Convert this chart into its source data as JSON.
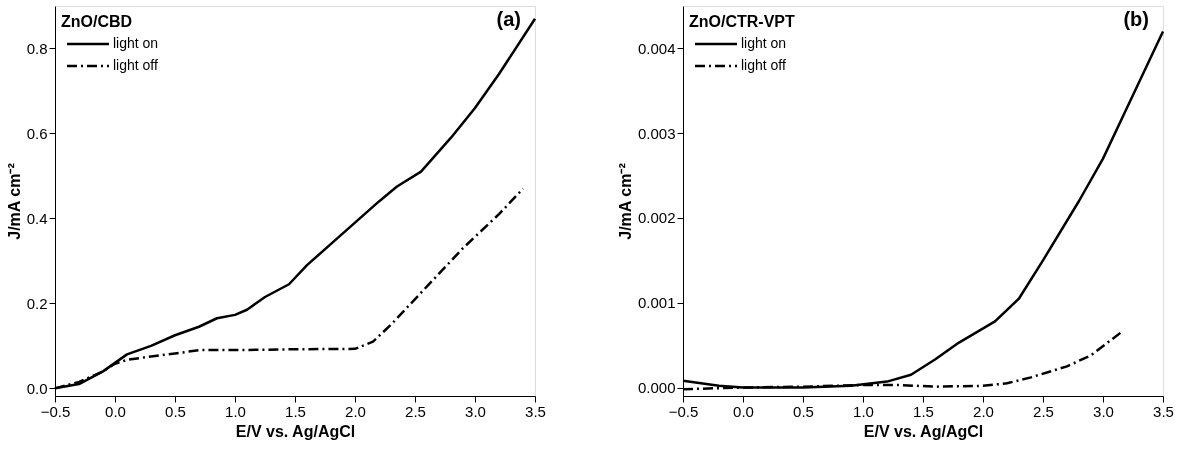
{
  "chart_data": [
    {
      "type": "line",
      "title": "ZnO/CBD",
      "annotations": [
        "(a)"
      ],
      "xlabel": "E/V vs. Ag/AgCl",
      "ylabel": "J/mA cm⁻²",
      "xlim": [
        -0.5,
        3.5
      ],
      "xticks": [
        -0.5,
        {
          "value": 0,
          "label": "0.0"
        },
        0.5,
        {
          "value": 1,
          "label": "1.0"
        },
        1.5,
        {
          "value": 2,
          "label": "2.0"
        },
        2.5,
        {
          "value": 3,
          "label": "3.0"
        },
        3.5
      ],
      "ylim": [
        -0.018,
        0.9
      ],
      "yticks": [
        {
          "value": 0,
          "label": "0.0"
        },
        0.2,
        0.4,
        0.6,
        0.8
      ],
      "grid": false,
      "legend": "top left",
      "marker": "none",
      "series": [
        {
          "name": "light on",
          "color": "#000000",
          "line_style": "solid",
          "x": [
            -0.5,
            -0.3,
            -0.1,
            0.0,
            0.1,
            0.3,
            0.5,
            0.7,
            0.85,
            1.0,
            1.1,
            1.25,
            1.45,
            1.6,
            1.8,
            2.0,
            2.2,
            2.35,
            2.55,
            2.8,
            3.0,
            3.2,
            3.5
          ],
          "values": [
            0.0,
            0.01,
            0.04,
            0.06,
            0.08,
            0.1,
            0.125,
            0.145,
            0.165,
            0.173,
            0.185,
            0.215,
            0.245,
            0.29,
            0.34,
            0.39,
            0.44,
            0.475,
            0.51,
            0.59,
            0.66,
            0.74,
            0.87
          ]
        },
        {
          "name": "light off",
          "color": "#000000",
          "line_style": "dashed",
          "x": [
            -0.5,
            -0.3,
            -0.1,
            0.0,
            0.1,
            0.3,
            0.5,
            0.7,
            1.0,
            1.5,
            2.0,
            2.15,
            2.3,
            2.6,
            2.9,
            3.2,
            3.4
          ],
          "values": [
            0.0,
            0.015,
            0.04,
            0.058,
            0.067,
            0.075,
            0.082,
            0.09,
            0.09,
            0.092,
            0.093,
            0.11,
            0.15,
            0.24,
            0.33,
            0.41,
            0.47
          ]
        }
      ]
    },
    {
      "type": "line",
      "title": "ZnO/CTR-VPT",
      "annotations": [
        "(b)"
      ],
      "xlabel": "E/V vs. Ag/AgCl",
      "ylabel": "J/mA cm⁻²",
      "xlim": [
        -0.5,
        3.5
      ],
      "xticks": [
        -0.5,
        {
          "value": 0,
          "label": "0.0"
        },
        0.5,
        {
          "value": 1,
          "label": "1.0"
        },
        1.5,
        {
          "value": 2,
          "label": "2.0"
        },
        2.5,
        {
          "value": 3,
          "label": "3.0"
        },
        3.5
      ],
      "ylim": [
        -0.0001,
        0.0045
      ],
      "yticks": [
        {
          "value": 0,
          "label": "0.000"
        },
        0.001,
        0.002,
        0.003,
        0.004
      ],
      "grid": false,
      "legend": "top left",
      "marker": "none",
      "series": [
        {
          "name": "light on",
          "color": "#000000",
          "line_style": "solid",
          "x": [
            -0.5,
            -0.2,
            0.0,
            0.5,
            0.9,
            1.2,
            1.4,
            1.6,
            1.8,
            2.1,
            2.3,
            2.5,
            2.8,
            3.0,
            3.2,
            3.5
          ],
          "values": [
            8e-05,
            2e-05,
            0.0,
            0.0,
            2e-05,
            7e-05,
            0.00015,
            0.00033,
            0.00053,
            0.00078,
            0.00105,
            0.0015,
            0.0022,
            0.0027,
            0.0033,
            0.0042
          ]
        },
        {
          "name": "light off",
          "color": "#000000",
          "line_style": "dashed",
          "x": [
            -0.5,
            0.0,
            0.5,
            1.0,
            1.3,
            1.6,
            2.0,
            2.2,
            2.4,
            2.7,
            2.9,
            3.15
          ],
          "values": [
            -2e-05,
            0.0,
            1e-05,
            3e-05,
            3e-05,
            1e-05,
            2e-05,
            5e-05,
            0.00012,
            0.00025,
            0.00038,
            0.00065
          ]
        }
      ]
    }
  ]
}
